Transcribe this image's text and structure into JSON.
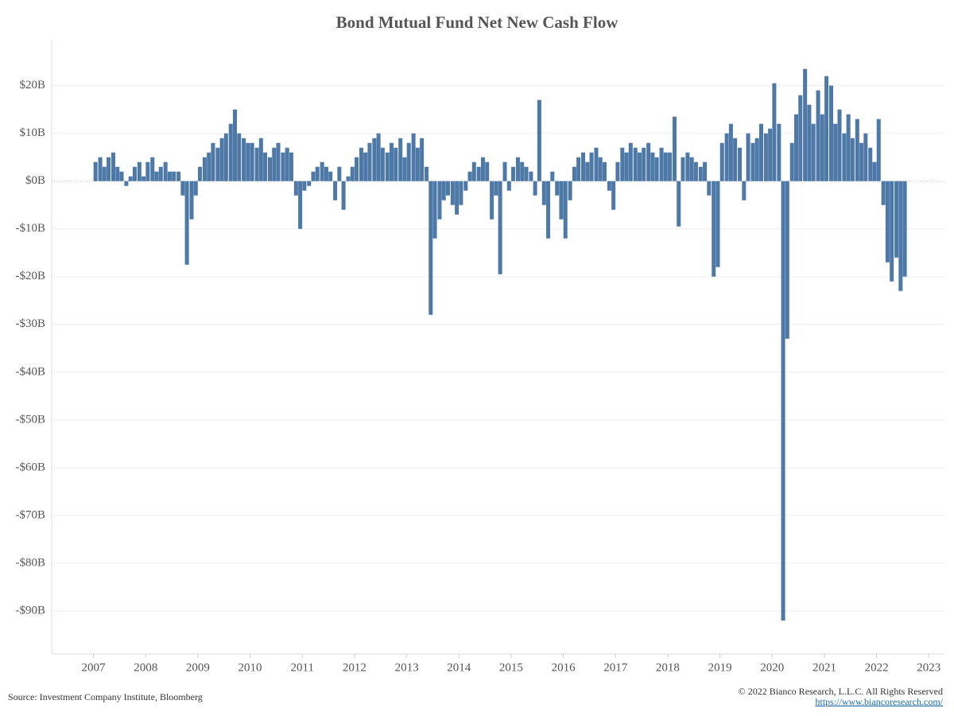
{
  "chart_data": {
    "type": "bar",
    "title": "Bond Mutual Fund Net New Cash Flow",
    "source": "Source: Investment Company Institute, Bloomberg",
    "copyright": "© 2022 Bianco Research, L.L.C. All Rights Reserved",
    "url": "https://www.biancoresearch.com/",
    "color": "#4e79a7",
    "grid": true,
    "xlim": [
      2006.2,
      2023.3
    ],
    "ylim": [
      -99,
      29.6
    ],
    "xticks": [
      2007,
      2008,
      2009,
      2010,
      2011,
      2012,
      2013,
      2014,
      2015,
      2016,
      2017,
      2018,
      2019,
      2020,
      2021,
      2022,
      2023
    ],
    "yticks": [
      {
        "value": 20,
        "label": "$20B"
      },
      {
        "value": 10,
        "label": "$10B"
      },
      {
        "value": 0,
        "label": "$0B"
      },
      {
        "value": -10,
        "label": "-$10B"
      },
      {
        "value": -20,
        "label": "-$20B"
      },
      {
        "value": -30,
        "label": "-$30B"
      },
      {
        "value": -40,
        "label": "-$40B"
      },
      {
        "value": -50,
        "label": "-$50B"
      },
      {
        "value": -60,
        "label": "-$60B"
      },
      {
        "value": -70,
        "label": "-$70B"
      },
      {
        "value": -80,
        "label": "-$80B"
      },
      {
        "value": -90,
        "label": "-$90B"
      }
    ],
    "x": [
      2007.04,
      2007.13,
      2007.21,
      2007.29,
      2007.38,
      2007.46,
      2007.54,
      2007.63,
      2007.71,
      2007.79,
      2007.88,
      2007.96,
      2008.04,
      2008.13,
      2008.21,
      2008.29,
      2008.38,
      2008.46,
      2008.54,
      2008.63,
      2008.71,
      2008.79,
      2008.88,
      2008.96,
      2009.04,
      2009.13,
      2009.21,
      2009.29,
      2009.38,
      2009.46,
      2009.54,
      2009.63,
      2009.71,
      2009.79,
      2009.88,
      2009.96,
      2010.04,
      2010.13,
      2010.21,
      2010.29,
      2010.38,
      2010.46,
      2010.54,
      2010.63,
      2010.71,
      2010.79,
      2010.88,
      2010.96,
      2011.04,
      2011.13,
      2011.21,
      2011.29,
      2011.38,
      2011.46,
      2011.54,
      2011.63,
      2011.71,
      2011.79,
      2011.88,
      2011.96,
      2012.04,
      2012.13,
      2012.21,
      2012.29,
      2012.38,
      2012.46,
      2012.54,
      2012.63,
      2012.71,
      2012.79,
      2012.88,
      2012.96,
      2013.04,
      2013.13,
      2013.21,
      2013.29,
      2013.38,
      2013.46,
      2013.54,
      2013.63,
      2013.71,
      2013.79,
      2013.88,
      2013.96,
      2014.04,
      2014.13,
      2014.21,
      2014.29,
      2014.38,
      2014.46,
      2014.54,
      2014.63,
      2014.71,
      2014.79,
      2014.88,
      2014.96,
      2015.04,
      2015.13,
      2015.21,
      2015.29,
      2015.38,
      2015.46,
      2015.54,
      2015.63,
      2015.71,
      2015.79,
      2015.88,
      2015.96,
      2016.04,
      2016.13,
      2016.21,
      2016.29,
      2016.38,
      2016.46,
      2016.54,
      2016.63,
      2016.71,
      2016.79,
      2016.88,
      2016.96,
      2017.04,
      2017.13,
      2017.21,
      2017.29,
      2017.38,
      2017.46,
      2017.54,
      2017.63,
      2017.71,
      2017.79,
      2017.88,
      2017.96,
      2018.04,
      2018.13,
      2018.21,
      2018.29,
      2018.38,
      2018.46,
      2018.54,
      2018.63,
      2018.71,
      2018.79,
      2018.88,
      2018.96,
      2019.04,
      2019.13,
      2019.21,
      2019.29,
      2019.38,
      2019.46,
      2019.54,
      2019.63,
      2019.71,
      2019.79,
      2019.88,
      2019.96,
      2020.04,
      2020.13,
      2020.21,
      2020.29,
      2020.38,
      2020.46,
      2020.54,
      2020.63,
      2020.71,
      2020.79,
      2020.88,
      2020.96,
      2021.04,
      2021.13,
      2021.21,
      2021.29,
      2021.38,
      2021.46,
      2021.54,
      2021.63,
      2021.71,
      2021.79,
      2021.88,
      2021.96,
      2022.04,
      2022.13,
      2022.21,
      2022.29,
      2022.38,
      2022.46,
      2022.54
    ],
    "values": [
      4,
      5,
      3,
      5,
      6,
      3,
      2,
      -1,
      1,
      3,
      4,
      1,
      4,
      5,
      2,
      3,
      4,
      2,
      2,
      2,
      -3,
      -17.5,
      -8,
      -3,
      3,
      5,
      6,
      8,
      7,
      9,
      10,
      12,
      15,
      10,
      9,
      8,
      8,
      7,
      9,
      6,
      5,
      7,
      8,
      6,
      7,
      6,
      -3,
      -10,
      -2,
      -1,
      2,
      3,
      4,
      3,
      2,
      -4,
      3,
      -6,
      1,
      3,
      5,
      7,
      6,
      8,
      9,
      10,
      7,
      6,
      8,
      7,
      9,
      5,
      8,
      10,
      7,
      9,
      3,
      -28,
      -12,
      -8,
      -4,
      -3,
      -5,
      -7,
      -5,
      -2,
      2,
      4,
      3,
      5,
      4,
      -8,
      -3,
      -19.5,
      4,
      -2,
      3,
      5,
      4,
      3,
      2,
      -3,
      17,
      -5,
      -12,
      2,
      -3,
      -8,
      -12,
      -4,
      3,
      5,
      6,
      4,
      6,
      7,
      5,
      4,
      -2,
      -6,
      4,
      7,
      6,
      8,
      7,
      6,
      7,
      8,
      6,
      5,
      7,
      6,
      6,
      13.5,
      -9.5,
      5,
      6,
      5,
      4,
      3,
      4,
      -3,
      -20,
      -18,
      8,
      10,
      12,
      9,
      7,
      -4,
      10,
      8,
      9,
      12,
      10,
      11,
      20.5,
      12,
      -92,
      -33,
      8,
      14,
      18,
      23.5,
      16,
      12,
      19,
      14,
      22,
      20,
      12,
      15,
      10,
      14,
      9,
      13,
      8,
      10,
      7,
      4,
      13,
      -5,
      -17,
      -21,
      -16,
      -23,
      -20
    ]
  }
}
